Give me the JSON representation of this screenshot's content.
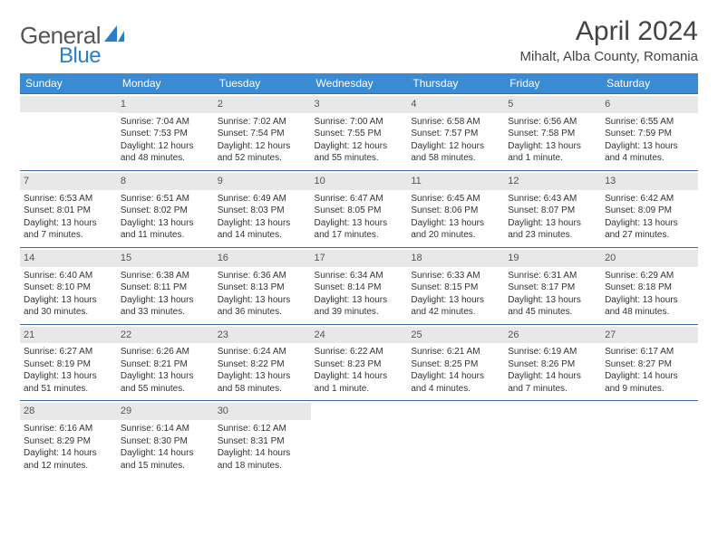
{
  "brand": {
    "word1": "General",
    "word2": "Blue",
    "text_color": "#555555",
    "accent_color": "#2a7fc9"
  },
  "title": "April 2024",
  "location": "Mihalt, Alba County, Romania",
  "header_bg": "#3a8bd4",
  "header_fg": "#ffffff",
  "daynum_bg": "#e8e8e8",
  "border_color": "#3a6b9c",
  "weekdays": [
    "Sunday",
    "Monday",
    "Tuesday",
    "Wednesday",
    "Thursday",
    "Friday",
    "Saturday"
  ],
  "grid_columns": 7,
  "leading_blanks": 1,
  "days": [
    {
      "n": 1,
      "sunrise": "7:04 AM",
      "sunset": "7:53 PM",
      "day_h": 12,
      "day_m": 48
    },
    {
      "n": 2,
      "sunrise": "7:02 AM",
      "sunset": "7:54 PM",
      "day_h": 12,
      "day_m": 52
    },
    {
      "n": 3,
      "sunrise": "7:00 AM",
      "sunset": "7:55 PM",
      "day_h": 12,
      "day_m": 55
    },
    {
      "n": 4,
      "sunrise": "6:58 AM",
      "sunset": "7:57 PM",
      "day_h": 12,
      "day_m": 58
    },
    {
      "n": 5,
      "sunrise": "6:56 AM",
      "sunset": "7:58 PM",
      "day_h": 13,
      "day_m": 1
    },
    {
      "n": 6,
      "sunrise": "6:55 AM",
      "sunset": "7:59 PM",
      "day_h": 13,
      "day_m": 4
    },
    {
      "n": 7,
      "sunrise": "6:53 AM",
      "sunset": "8:01 PM",
      "day_h": 13,
      "day_m": 7
    },
    {
      "n": 8,
      "sunrise": "6:51 AM",
      "sunset": "8:02 PM",
      "day_h": 13,
      "day_m": 11
    },
    {
      "n": 9,
      "sunrise": "6:49 AM",
      "sunset": "8:03 PM",
      "day_h": 13,
      "day_m": 14
    },
    {
      "n": 10,
      "sunrise": "6:47 AM",
      "sunset": "8:05 PM",
      "day_h": 13,
      "day_m": 17
    },
    {
      "n": 11,
      "sunrise": "6:45 AM",
      "sunset": "8:06 PM",
      "day_h": 13,
      "day_m": 20
    },
    {
      "n": 12,
      "sunrise": "6:43 AM",
      "sunset": "8:07 PM",
      "day_h": 13,
      "day_m": 23
    },
    {
      "n": 13,
      "sunrise": "6:42 AM",
      "sunset": "8:09 PM",
      "day_h": 13,
      "day_m": 27
    },
    {
      "n": 14,
      "sunrise": "6:40 AM",
      "sunset": "8:10 PM",
      "day_h": 13,
      "day_m": 30
    },
    {
      "n": 15,
      "sunrise": "6:38 AM",
      "sunset": "8:11 PM",
      "day_h": 13,
      "day_m": 33
    },
    {
      "n": 16,
      "sunrise": "6:36 AM",
      "sunset": "8:13 PM",
      "day_h": 13,
      "day_m": 36
    },
    {
      "n": 17,
      "sunrise": "6:34 AM",
      "sunset": "8:14 PM",
      "day_h": 13,
      "day_m": 39
    },
    {
      "n": 18,
      "sunrise": "6:33 AM",
      "sunset": "8:15 PM",
      "day_h": 13,
      "day_m": 42
    },
    {
      "n": 19,
      "sunrise": "6:31 AM",
      "sunset": "8:17 PM",
      "day_h": 13,
      "day_m": 45
    },
    {
      "n": 20,
      "sunrise": "6:29 AM",
      "sunset": "8:18 PM",
      "day_h": 13,
      "day_m": 48
    },
    {
      "n": 21,
      "sunrise": "6:27 AM",
      "sunset": "8:19 PM",
      "day_h": 13,
      "day_m": 51
    },
    {
      "n": 22,
      "sunrise": "6:26 AM",
      "sunset": "8:21 PM",
      "day_h": 13,
      "day_m": 55
    },
    {
      "n": 23,
      "sunrise": "6:24 AM",
      "sunset": "8:22 PM",
      "day_h": 13,
      "day_m": 58
    },
    {
      "n": 24,
      "sunrise": "6:22 AM",
      "sunset": "8:23 PM",
      "day_h": 14,
      "day_m": 1
    },
    {
      "n": 25,
      "sunrise": "6:21 AM",
      "sunset": "8:25 PM",
      "day_h": 14,
      "day_m": 4
    },
    {
      "n": 26,
      "sunrise": "6:19 AM",
      "sunset": "8:26 PM",
      "day_h": 14,
      "day_m": 7
    },
    {
      "n": 27,
      "sunrise": "6:17 AM",
      "sunset": "8:27 PM",
      "day_h": 14,
      "day_m": 9
    },
    {
      "n": 28,
      "sunrise": "6:16 AM",
      "sunset": "8:29 PM",
      "day_h": 14,
      "day_m": 12
    },
    {
      "n": 29,
      "sunrise": "6:14 AM",
      "sunset": "8:30 PM",
      "day_h": 14,
      "day_m": 15
    },
    {
      "n": 30,
      "sunrise": "6:12 AM",
      "sunset": "8:31 PM",
      "day_h": 14,
      "day_m": 18
    }
  ],
  "labels": {
    "sunrise_prefix": "Sunrise: ",
    "sunset_prefix": "Sunset: ",
    "daylight_prefix": "Daylight: ",
    "hours_word": " hours",
    "and_word": "and ",
    "minute_word": " minute.",
    "minutes_word": " minutes."
  }
}
